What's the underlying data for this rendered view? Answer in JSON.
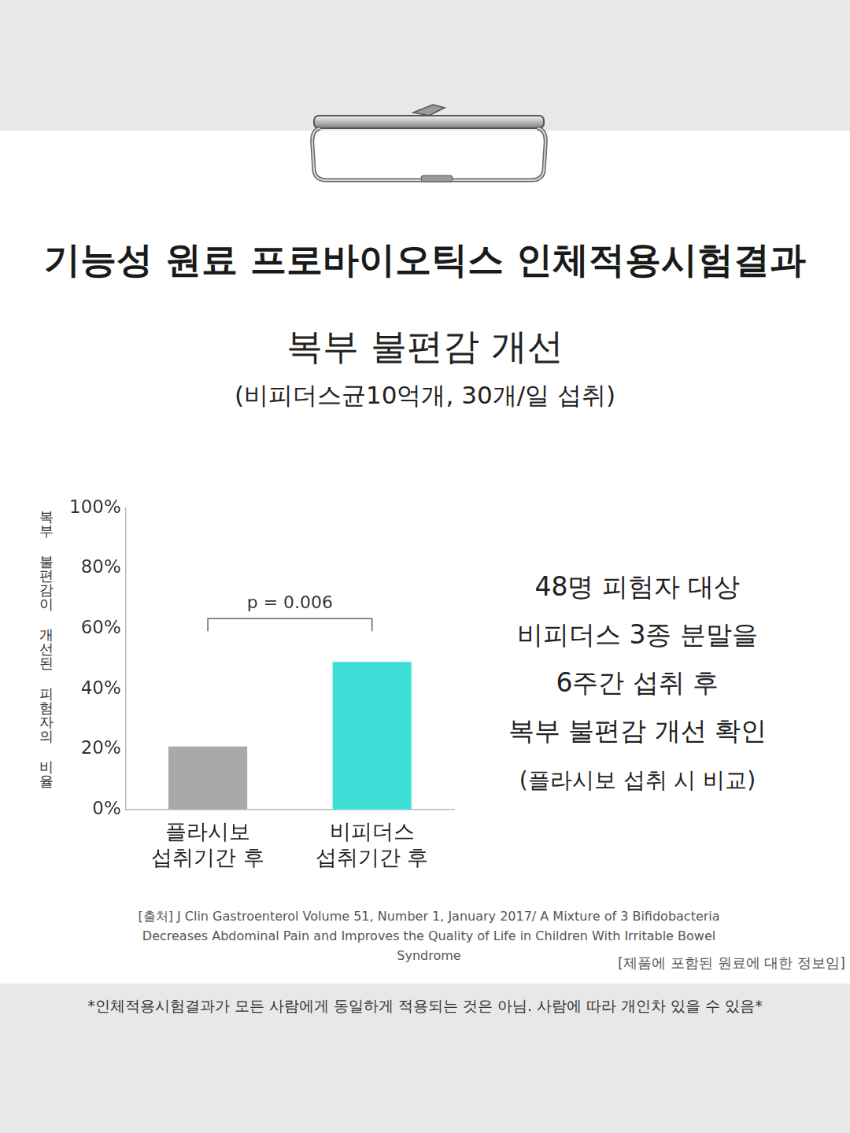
{
  "header": {
    "title": "기능성 원료 프로바이오틱스 인체적용시험결과",
    "subtitle": "복부 불편감 개선",
    "note": "(비피더스균10억개, 30개/일 섭취)"
  },
  "chart_data": {
    "type": "bar",
    "categories": [
      "플라시보 섭취기간 후",
      "비피더스 섭취기간 후"
    ],
    "values": [
      21,
      49
    ],
    "colors": [
      "#a9a9a9",
      "#3fdfd7"
    ],
    "y_label": "복부 불편감이 개선된 피험자의 비율",
    "ylim": [
      0,
      100
    ],
    "yticks": [
      {
        "value": 0,
        "label": "0%"
      },
      {
        "value": 20,
        "label": "20%"
      },
      {
        "value": 40,
        "label": "40%"
      },
      {
        "value": 60,
        "label": "60%"
      },
      {
        "value": 80,
        "label": "80%"
      },
      {
        "value": 100,
        "label": "100%"
      }
    ],
    "grid": false,
    "annotation": "p = 0.006"
  },
  "side_text": [
    "48명 피험자 대상",
    "비피더스 3종 분말을",
    "6주간 섭취 후",
    "복부 불편감 개선 확인",
    "(플라시보 섭취 시 비교)"
  ],
  "source": "[출처] J Clin Gastroenterol  Volume 51, Number 1, January 2017/ A Mixture of 3 Bifidobacteria Decreases Abdominal Pain and Improves the Quality of Life in Children With Irritable Bowel Syndrome",
  "info_note": "[제품에 포함된 원료에 대한 정보임]",
  "disclaimer": "*인체적용시험결과가 모든 사람에게 동일하게 적용되는 것은 아님. 사람에 따라 개인차 있을 수 있음*"
}
